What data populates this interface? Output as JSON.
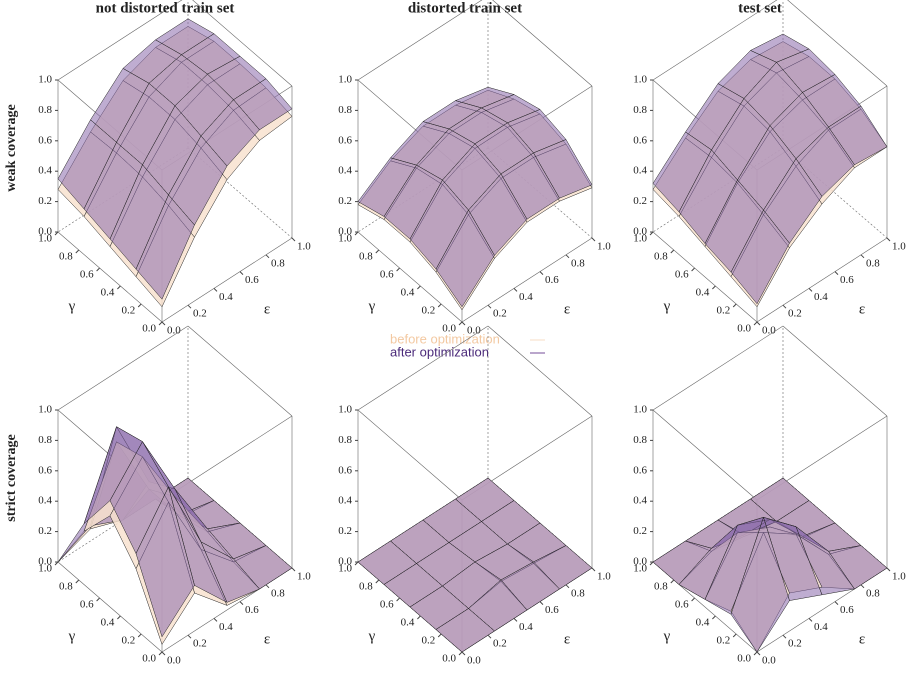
{
  "chart_data": [
    {
      "type": "surface",
      "title": "not distorted train set",
      "zlabel": "weak coverage",
      "xlabel": "ε",
      "ylabel": "γ",
      "x": [
        0,
        0.25,
        0.5,
        0.75,
        1
      ],
      "y": [
        0,
        0.25,
        0.5,
        0.75,
        1
      ],
      "xlim": [
        0,
        1
      ],
      "ylim": [
        0,
        1
      ],
      "zlim": [
        0,
        1
      ],
      "xticks": [
        {
          "value": 0,
          "label": "0.0"
        },
        0.2,
        0.4,
        0.6,
        0.8,
        {
          "value": 1,
          "label": "1.0"
        }
      ],
      "yticks": [
        {
          "value": 0,
          "label": "0.0"
        },
        0.2,
        0.4,
        0.6,
        0.8,
        {
          "value": 1,
          "label": "1.0"
        }
      ],
      "zticks": [
        {
          "value": 0,
          "label": "0.0"
        },
        0.2,
        0.4,
        0.6,
        0.8,
        {
          "value": 1,
          "label": "1.0"
        }
      ],
      "series": [
        {
          "color": "#f8e2cf",
          "values": [
            [
              0.1,
              0.42,
              0.66,
              0.78,
              0.8
            ],
            [
              0.15,
              0.48,
              0.72,
              0.83,
              0.84
            ],
            [
              0.2,
              0.52,
              0.76,
              0.85,
              0.85
            ],
            [
              0.25,
              0.53,
              0.76,
              0.85,
              0.85
            ],
            [
              0.28,
              0.52,
              0.72,
              0.8,
              0.8
            ]
          ]
        },
        {
          "color": "#8b6aab",
          "values": [
            [
              0.15,
              0.5,
              0.75,
              0.85,
              0.85
            ],
            [
              0.2,
              0.55,
              0.8,
              0.9,
              0.9
            ],
            [
              0.25,
              0.6,
              0.85,
              0.92,
              0.9
            ],
            [
              0.3,
              0.6,
              0.85,
              0.9,
              0.9
            ],
            [
              0.35,
              0.6,
              0.8,
              0.85,
              0.85
            ]
          ]
        }
      ]
    },
    {
      "type": "surface",
      "title": "distorted train set",
      "xlabel": "ε",
      "ylabel": "γ",
      "x": [
        0,
        0.25,
        0.5,
        0.75,
        1
      ],
      "y": [
        0,
        0.25,
        0.5,
        0.75,
        1
      ],
      "xlim": [
        0,
        1
      ],
      "ylim": [
        0,
        1
      ],
      "zlim": [
        0,
        1
      ],
      "xticks": [
        {
          "value": 0,
          "label": "0.0"
        },
        0.2,
        0.4,
        0.6,
        0.8,
        {
          "value": 1,
          "label": "1.0"
        }
      ],
      "yticks": [
        {
          "value": 0,
          "label": "0.0"
        },
        0.2,
        0.4,
        0.6,
        0.8,
        {
          "value": 1,
          "label": "1.0"
        }
      ],
      "zticks": [
        {
          "value": 0,
          "label": "0.0"
        },
        0.2,
        0.4,
        0.6,
        0.8,
        {
          "value": 1,
          "label": "1.0"
        }
      ],
      "series": [
        {
          "name": "before optimization",
          "color": "#f8e2cf",
          "values": [
            [
              0.08,
              0.28,
              0.38,
              0.38,
              0.33
            ],
            [
              0.18,
              0.42,
              0.52,
              0.52,
              0.47
            ],
            [
              0.23,
              0.47,
              0.57,
              0.57,
              0.52
            ],
            [
              0.23,
              0.43,
              0.52,
              0.52,
              0.47
            ],
            [
              0.18,
              0.33,
              0.42,
              0.42,
              0.38
            ]
          ]
        },
        {
          "name": "after optimization",
          "color": "#8b6aab",
          "values": [
            [
              0.1,
              0.3,
              0.4,
              0.4,
              0.35
            ],
            [
              0.2,
              0.45,
              0.55,
              0.55,
              0.5
            ],
            [
              0.25,
              0.5,
              0.6,
              0.6,
              0.55
            ],
            [
              0.25,
              0.45,
              0.55,
              0.55,
              0.5
            ],
            [
              0.2,
              0.35,
              0.45,
              0.45,
              0.4
            ]
          ]
        }
      ]
    },
    {
      "type": "surface",
      "title": "test set",
      "xlabel": "ε",
      "ylabel": "γ",
      "x": [
        0,
        0.25,
        0.5,
        0.75,
        1
      ],
      "y": [
        0,
        0.25,
        0.5,
        0.75,
        1
      ],
      "xlim": [
        0,
        1
      ],
      "ylim": [
        0,
        1
      ],
      "zlim": [
        0,
        1
      ],
      "xticks": [
        {
          "value": 0,
          "label": "0.0"
        },
        0.2,
        0.4,
        0.6,
        0.8,
        {
          "value": 1,
          "label": "1.0"
        }
      ],
      "yticks": [
        {
          "value": 0,
          "label": "0.0"
        },
        0.2,
        0.4,
        0.6,
        0.8,
        {
          "value": 1,
          "label": "1.0"
        }
      ],
      "zticks": [
        {
          "value": 0,
          "label": "0.0"
        },
        0.2,
        0.4,
        0.6,
        0.8,
        {
          "value": 1,
          "label": "1.0"
        }
      ],
      "series": [
        {
          "color": "#f8e2cf",
          "values": [
            [
              0.1,
              0.35,
              0.5,
              0.6,
              0.6
            ],
            [
              0.15,
              0.42,
              0.6,
              0.7,
              0.7
            ],
            [
              0.2,
              0.48,
              0.68,
              0.75,
              0.75
            ],
            [
              0.25,
              0.5,
              0.7,
              0.78,
              0.75
            ],
            [
              0.28,
              0.48,
              0.65,
              0.72,
              0.7
            ]
          ]
        },
        {
          "color": "#8b6aab",
          "values": [
            [
              0.12,
              0.38,
              0.55,
              0.62,
              0.6
            ],
            [
              0.18,
              0.45,
              0.65,
              0.72,
              0.72
            ],
            [
              0.22,
              0.5,
              0.72,
              0.8,
              0.78
            ],
            [
              0.28,
              0.55,
              0.75,
              0.85,
              0.8
            ],
            [
              0.32,
              0.52,
              0.7,
              0.78,
              0.75
            ]
          ]
        }
      ]
    },
    {
      "type": "surface",
      "zlabel": "strict coverage",
      "xlabel": "ε",
      "ylabel": "γ",
      "x": [
        0,
        0.25,
        0.5,
        0.75,
        1
      ],
      "y": [
        0,
        0.25,
        0.5,
        0.75,
        1
      ],
      "xlim": [
        0,
        1
      ],
      "ylim": [
        0,
        1
      ],
      "zlim": [
        0,
        1
      ],
      "xticks": [
        {
          "value": 0,
          "label": "0.0"
        },
        0.2,
        0.4,
        0.6,
        0.8,
        {
          "value": 1,
          "label": "1.0"
        }
      ],
      "yticks": [
        {
          "value": 0,
          "label": "0.0"
        },
        0.2,
        0.4,
        0.6,
        0.8,
        {
          "value": 1,
          "label": "1.0"
        }
      ],
      "zticks": [
        {
          "value": 0,
          "label": "0.0"
        },
        0.2,
        0.4,
        0.6,
        0.8,
        {
          "value": 1,
          "label": "1.0"
        }
      ],
      "series": [
        {
          "color": "#f8e2cf",
          "values": [
            [
              0.05,
              0.25,
              0.03,
              0,
              0
            ],
            [
              0.4,
              0.7,
              0.25,
              0.03,
              0
            ],
            [
              0.6,
              0.85,
              0.45,
              0.08,
              0
            ],
            [
              0.35,
              0.8,
              0.35,
              0.03,
              0
            ],
            [
              0,
              0.08,
              0,
              0,
              0
            ]
          ]
        },
        {
          "color": "#8b6aab",
          "values": [
            [
              0.1,
              0.3,
              0.05,
              0,
              0
            ],
            [
              0.5,
              0.8,
              0.3,
              0.05,
              0
            ],
            [
              0.7,
              0.95,
              0.5,
              0.1,
              0
            ],
            [
              0.4,
              0.9,
              0.4,
              0.05,
              0
            ],
            [
              0,
              0.1,
              0,
              0,
              0
            ]
          ]
        }
      ]
    },
    {
      "type": "surface",
      "xlabel": "ε",
      "ylabel": "γ",
      "x": [
        0,
        0.25,
        0.5,
        0.75,
        1
      ],
      "y": [
        0,
        0.25,
        0.5,
        0.75,
        1
      ],
      "xlim": [
        0,
        1
      ],
      "ylim": [
        0,
        1
      ],
      "zlim": [
        0,
        1
      ],
      "xticks": [
        {
          "value": 0,
          "label": "0.0"
        },
        0.2,
        0.4,
        0.6,
        0.8,
        {
          "value": 1,
          "label": "1.0"
        }
      ],
      "yticks": [
        {
          "value": 0,
          "label": "0.0"
        },
        0.2,
        0.4,
        0.6,
        0.8,
        {
          "value": 1,
          "label": "1.0"
        }
      ],
      "zticks": [
        {
          "value": 0,
          "label": "0.0"
        },
        0.2,
        0.4,
        0.6,
        0.8,
        {
          "value": 1,
          "label": "1.0"
        }
      ],
      "series": [
        {
          "color": "#f8e2cf",
          "values": [
            [
              0,
              0,
              0,
              0,
              0
            ],
            [
              0,
              0,
              0.04,
              0.02,
              0
            ],
            [
              0,
              0,
              0.02,
              0,
              0
            ],
            [
              0,
              0,
              0,
              0,
              0
            ],
            [
              0,
              0,
              0,
              0,
              0
            ]
          ]
        },
        {
          "color": "#8b6aab",
          "values": [
            [
              0,
              0,
              0,
              0,
              0
            ],
            [
              0,
              0,
              0.05,
              0.03,
              0
            ],
            [
              0,
              0,
              0.02,
              0,
              0
            ],
            [
              0,
              0,
              0,
              0,
              0
            ],
            [
              0,
              0,
              0,
              0,
              0
            ]
          ]
        }
      ]
    },
    {
      "type": "surface",
      "xlabel": "ε",
      "ylabel": "γ",
      "x": [
        0,
        0.25,
        0.5,
        0.75,
        1
      ],
      "y": [
        0,
        0.25,
        0.5,
        0.75,
        1
      ],
      "xlim": [
        0,
        1
      ],
      "ylim": [
        0,
        1
      ],
      "zlim": [
        0,
        1
      ],
      "xticks": [
        {
          "value": 0,
          "label": "0.0"
        },
        0.2,
        0.4,
        0.6,
        0.8,
        {
          "value": 1,
          "label": "1.0"
        }
      ],
      "yticks": [
        {
          "value": 0,
          "label": "0.0"
        },
        0.2,
        0.4,
        0.6,
        0.8,
        {
          "value": 1,
          "label": "1.0"
        }
      ],
      "zticks": [
        {
          "value": 0,
          "label": "0.0"
        },
        0.2,
        0.4,
        0.6,
        0.8,
        {
          "value": 1,
          "label": "1.0"
        }
      ],
      "series": [
        {
          "color": "#f8e2cf",
          "values": [
            [
              0,
              0.25,
              0.15,
              0,
              0
            ],
            [
              0.12,
              0.5,
              0.35,
              0.08,
              0
            ],
            [
              0.05,
              0.35,
              0.25,
              0.04,
              0
            ],
            [
              0,
              0.08,
              0.04,
              0,
              0
            ],
            [
              0,
              0,
              0,
              0,
              0
            ]
          ]
        },
        {
          "color": "#8b6aab",
          "values": [
            [
              0,
              0.2,
              0.1,
              0,
              0
            ],
            [
              0.1,
              0.6,
              0.4,
              0.1,
              0
            ],
            [
              0.05,
              0.4,
              0.3,
              0.05,
              0
            ],
            [
              0,
              0.1,
              0.05,
              0,
              0
            ],
            [
              0,
              0,
              0,
              0,
              0
            ]
          ]
        }
      ]
    }
  ]
}
